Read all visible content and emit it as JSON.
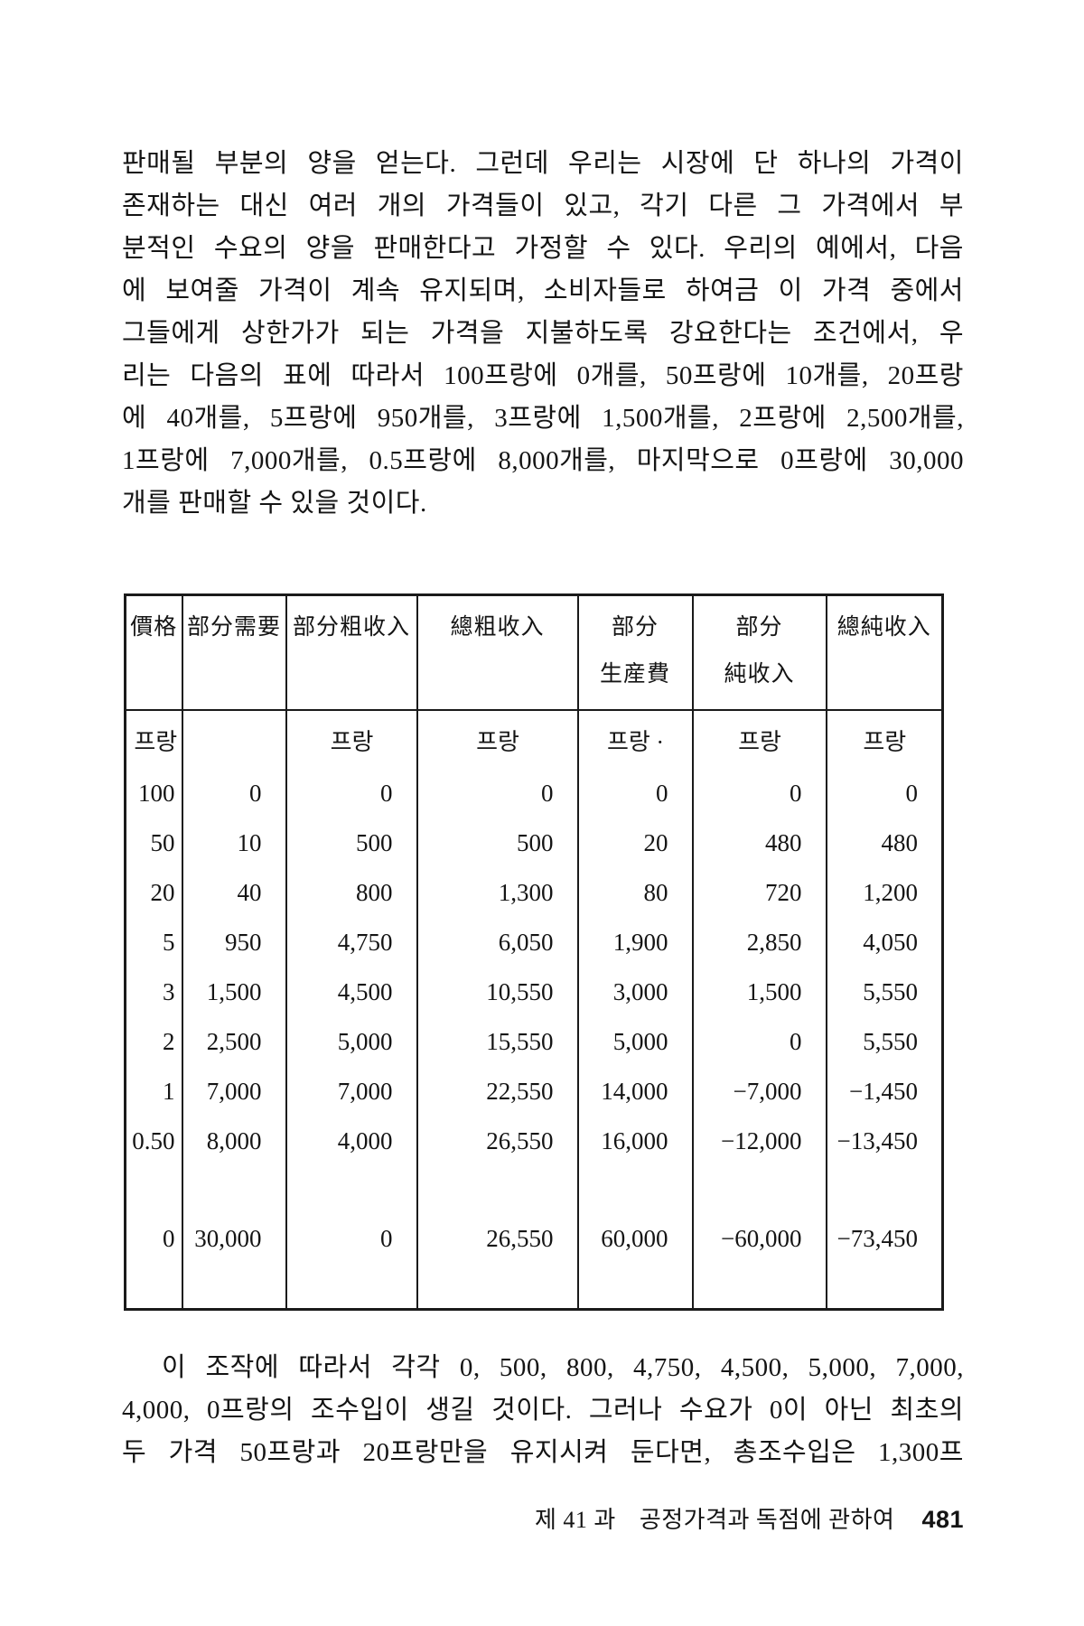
{
  "paragraph_top": {
    "lines": [
      {
        "text": "판매될 부분의 양을 얻는다. 그런데 우리는 시장에 단 하나의 가격이",
        "justify": true
      },
      {
        "text": "존재하는 대신 여러 개의 가격들이 있고, 각기 다른 그 가격에서 부",
        "justify": true
      },
      {
        "text": "분적인 수요의 양을 판매한다고 가정할 수 있다. 우리의 예에서, 다음",
        "justify": true
      },
      {
        "text": "에 보여줄 가격이 계속 유지되며, 소비자들로 하여금 이 가격 중에서",
        "justify": true
      },
      {
        "text": "그들에게 상한가가 되는 가격을 지불하도록 강요한다는 조건에서, 우",
        "justify": true
      },
      {
        "text": "리는 다음의 표에 따라서 100프랑에 0개를, 50프랑에 10개를, 20프랑",
        "justify": true
      },
      {
        "text": "에 40개를, 5프랑에 950개를, 3프랑에 1,500개를, 2프랑에 2,500개를,",
        "justify": true
      },
      {
        "text": "1프랑에 7,000개를, 0.5프랑에 8,000개를, 마지막으로 0프랑에 30,000",
        "justify": true
      },
      {
        "text": "개를 판매할 수 있을 것이다.",
        "justify": false
      }
    ]
  },
  "table": {
    "headers": [
      {
        "lines": [
          "價格"
        ]
      },
      {
        "lines": [
          "部分需要"
        ]
      },
      {
        "lines": [
          "部分粗收入"
        ]
      },
      {
        "lines": [
          "總粗收入"
        ]
      },
      {
        "lines": [
          "部分",
          "生産費"
        ]
      },
      {
        "lines": [
          "部分",
          "純收入"
        ]
      },
      {
        "lines": [
          "總純收入"
        ]
      }
    ],
    "unit_row": [
      "프랑",
      "",
      "프랑",
      "프랑",
      "프랑 ·",
      "프랑",
      "프랑"
    ],
    "rows": [
      [
        "100",
        "0",
        "0",
        "0",
        "0",
        "0",
        "0"
      ],
      [
        "50",
        "10",
        "500",
        "500",
        "20",
        "480",
        "480"
      ],
      [
        "20",
        "40",
        "800",
        "1,300",
        "80",
        "720",
        "1,200"
      ],
      [
        "5",
        "950",
        "4,750",
        "6,050",
        "1,900",
        "2,850",
        "4,050"
      ],
      [
        "3",
        "1,500",
        "4,500",
        "10,550",
        "3,000",
        "1,500",
        "5,550"
      ],
      [
        "2",
        "2,500",
        "5,000",
        "15,550",
        "5,000",
        "0",
        "5,550"
      ],
      [
        "1",
        "7,000",
        "7,000",
        "22,550",
        "14,000",
        "−7,000",
        "−1,450"
      ],
      [
        "0.50",
        "8,000",
        "4,000",
        "26,550",
        "16,000",
        "−12,000",
        "−13,450"
      ],
      [
        "0",
        "30,000",
        "0",
        "26,550",
        "60,000",
        "−60,000",
        "−73,450"
      ]
    ]
  },
  "paragraph_bottom": {
    "lines": [
      {
        "text": "이 조작에 따라서 각각 0, 500, 800, 4,750, 4,500, 5,000, 7,000,",
        "justify": true,
        "indent": true
      },
      {
        "text": "4,000, 0프랑의 조수입이 생길 것이다. 그러나 수요가 0이 아닌 최초의",
        "justify": true
      },
      {
        "text": "두 가격 50프랑과 20프랑만을 유지시켜 둔다면, 총조수입은 1,300프",
        "justify": true
      }
    ]
  },
  "footer": {
    "chapter": "제 41 과",
    "title": "공정가격과 독점에 관하여",
    "page_number": "481"
  }
}
